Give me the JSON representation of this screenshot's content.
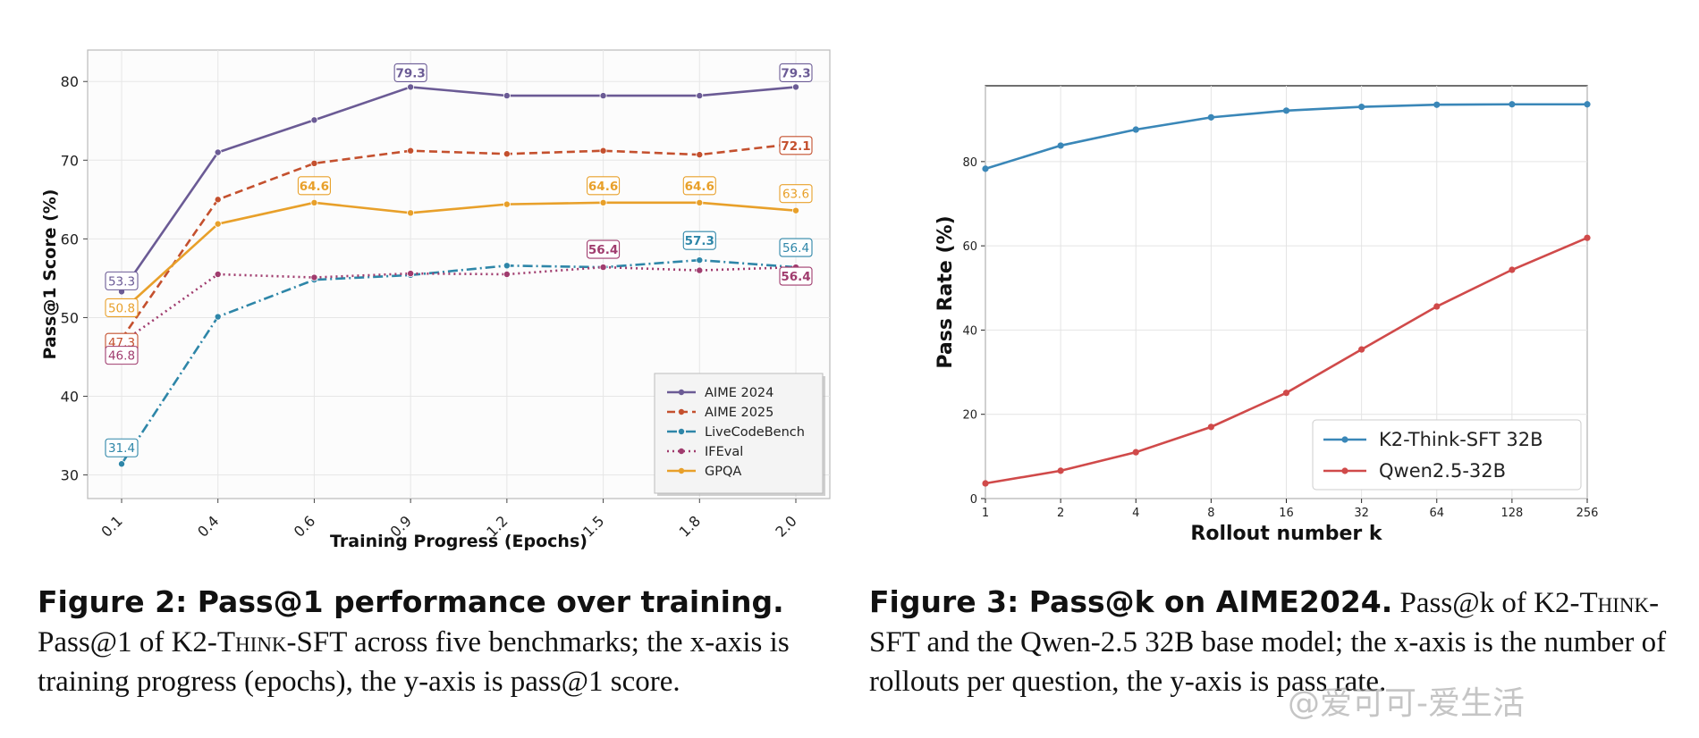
{
  "chart_data": [
    {
      "type": "line",
      "title": "",
      "xlabel": "Training Progress (Epochs)",
      "ylabel": "Pass@1 Score (%)",
      "categories": [
        "0.1",
        "0.4",
        "0.6",
        "0.9",
        "1.2",
        "1.5",
        "1.8",
        "2.0"
      ],
      "ylim": [
        27,
        84
      ],
      "yticks": [
        "30",
        "40",
        "50",
        "60",
        "70",
        "80"
      ],
      "grid": true,
      "legend_position": "bottom-right",
      "series": [
        {
          "name": "AIME 2024",
          "color": "#6b5b95",
          "style": "solid",
          "values": [
            53.3,
            71.0,
            75.1,
            79.3,
            78.2,
            78.2,
            78.2,
            79.3
          ]
        },
        {
          "name": "AIME 2025",
          "color": "#c4502e",
          "style": "dashed",
          "values": [
            47.3,
            65.0,
            69.6,
            71.2,
            70.8,
            71.2,
            70.7,
            72.1
          ]
        },
        {
          "name": "LiveCodeBench",
          "color": "#2e86a8",
          "style": "dashdot",
          "values": [
            31.4,
            50.1,
            54.8,
            55.4,
            56.6,
            56.4,
            57.3,
            56.4
          ]
        },
        {
          "name": "IFEval",
          "color": "#a03c6e",
          "style": "dotted",
          "values": [
            46.8,
            55.5,
            55.1,
            55.6,
            55.5,
            56.4,
            56.0,
            56.4
          ]
        },
        {
          "name": "GPQA",
          "color": "#e8a02a",
          "style": "solid",
          "values": [
            50.8,
            61.9,
            64.6,
            63.3,
            64.4,
            64.6,
            64.6,
            63.6
          ]
        }
      ],
      "annotations": [
        {
          "series": "AIME 2024",
          "index": 0,
          "text": "53.3",
          "bold": false
        },
        {
          "series": "AIME 2024",
          "index": 3,
          "text": "79.3",
          "bold": true
        },
        {
          "series": "AIME 2024",
          "index": 7,
          "text": "79.3",
          "bold": true
        },
        {
          "series": "GPQA",
          "index": 0,
          "text": "50.8",
          "bold": false
        },
        {
          "series": "GPQA",
          "index": 2,
          "text": "64.6",
          "bold": true
        },
        {
          "series": "GPQA",
          "index": 5,
          "text": "64.6",
          "bold": true
        },
        {
          "series": "GPQA",
          "index": 6,
          "text": "64.6",
          "bold": true
        },
        {
          "series": "GPQA",
          "index": 7,
          "text": "63.6",
          "bold": false
        },
        {
          "series": "AIME 2025",
          "index": 0,
          "text": "47.3",
          "bold": false
        },
        {
          "series": "AIME 2025",
          "index": 7,
          "text": "72.1",
          "bold": true
        },
        {
          "series": "IFEval",
          "index": 0,
          "text": "46.8",
          "bold": false
        },
        {
          "series": "IFEval",
          "index": 5,
          "text": "56.4",
          "bold": true
        },
        {
          "series": "IFEval",
          "index": 7,
          "text": "56.4",
          "bold": true
        },
        {
          "series": "LiveCodeBench",
          "index": 0,
          "text": "31.4",
          "bold": false
        },
        {
          "series": "LiveCodeBench",
          "index": 6,
          "text": "57.3",
          "bold": true
        },
        {
          "series": "LiveCodeBench",
          "index": 7,
          "text": "56.4",
          "bold": false
        }
      ]
    },
    {
      "type": "line",
      "title": "",
      "xlabel": "Rollout number k",
      "ylabel": "Pass Rate (%)",
      "x_scale": "log2",
      "categories": [
        "1",
        "2",
        "4",
        "8",
        "16",
        "32",
        "64",
        "128",
        "256"
      ],
      "ylim": [
        0,
        98
      ],
      "yticks": [
        "0",
        "20",
        "40",
        "60",
        "80"
      ],
      "grid": true,
      "legend_position": "bottom-right",
      "series": [
        {
          "name": "K2-Think-SFT 32B",
          "color": "#3a87b8",
          "style": "solid",
          "values": [
            78.3,
            83.8,
            87.6,
            90.5,
            92.1,
            93.0,
            93.5,
            93.6,
            93.6
          ]
        },
        {
          "name": "Qwen2.5-32B",
          "color": "#d04a4a",
          "style": "solid",
          "values": [
            3.6,
            6.6,
            11.0,
            17.0,
            25.1,
            35.4,
            45.6,
            54.3,
            61.9
          ]
        }
      ]
    }
  ],
  "captions": {
    "fig2_head": "Figure 2: Pass@1 performance over training.",
    "fig2_a": " Pass@1 of K2-",
    "fig2_sc": "Think",
    "fig2_b": "-SFT across five benchmarks; the x-axis is training progress (epochs), the y-axis is pass@1 score.",
    "fig3_head": "Figure 3: Pass@k on AIME2024.",
    "fig3_a": " Pass@k of K2-",
    "fig3_sc": "Think",
    "fig3_b": "-SFT and the Qwen-2.5 32B base model; the x-axis is the number of rollouts per question, the y-axis is pass rate."
  },
  "watermark": "@爱可可-爱生活"
}
